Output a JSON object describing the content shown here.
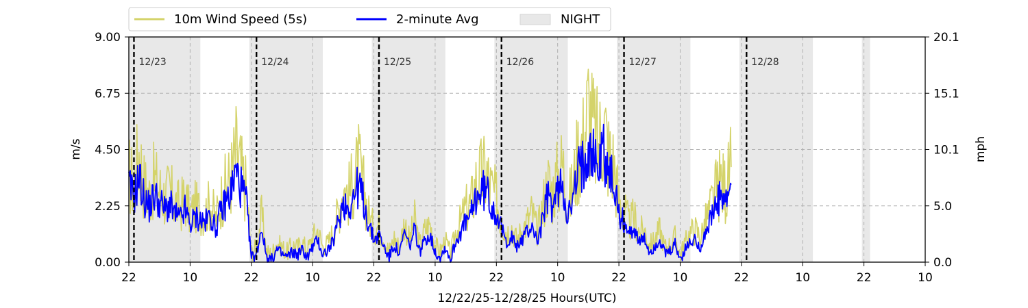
{
  "chart_data": {
    "type": "line",
    "xlabel": "12/22/25-12/28/25  Hours(UTC)",
    "ylabel": "m/s",
    "ylabel_right": "mph",
    "ylim": [
      0,
      9
    ],
    "ylim_right": [
      0,
      20.1
    ],
    "x_range_hours": [
      0,
      156
    ],
    "x_ticks": [
      {
        "hour": 0,
        "label": "22"
      },
      {
        "hour": 12,
        "label": "10"
      },
      {
        "hour": 24,
        "label": "22"
      },
      {
        "hour": 36,
        "label": "10"
      },
      {
        "hour": 48,
        "label": "22"
      },
      {
        "hour": 60,
        "label": "10"
      },
      {
        "hour": 72,
        "label": "22"
      },
      {
        "hour": 84,
        "label": "10"
      },
      {
        "hour": 96,
        "label": "22"
      },
      {
        "hour": 108,
        "label": "10"
      },
      {
        "hour": 120,
        "label": "22"
      },
      {
        "hour": 132,
        "label": "10"
      },
      {
        "hour": 144,
        "label": "22"
      },
      {
        "hour": 156,
        "label": "10"
      }
    ],
    "y_ticks": [
      "0.00",
      "2.25",
      "4.50",
      "6.75",
      "9.00"
    ],
    "y_tick_values": [
      0,
      2.25,
      4.5,
      6.75,
      9
    ],
    "y_ticks_right": [
      "0.0",
      "5.0",
      "10.1",
      "15.1",
      "20.1"
    ],
    "grid": true,
    "legend_placement": "top-left",
    "legend": {
      "raw_label": "10m Wind Speed (5s)",
      "avg_label": "2-minute Avg",
      "night_label": "NIGHT"
    },
    "day_markers": [
      {
        "hour": 1,
        "label": "12/23"
      },
      {
        "hour": 25,
        "label": "12/24"
      },
      {
        "hour": 49,
        "label": "12/25"
      },
      {
        "hour": 73,
        "label": "12/26"
      },
      {
        "hour": 97,
        "label": "12/27"
      },
      {
        "hour": 121,
        "label": "12/28"
      }
    ],
    "night_periods": [
      [
        0,
        14
      ],
      [
        23.6,
        38
      ],
      [
        47.6,
        62
      ],
      [
        71.6,
        86
      ],
      [
        95.6,
        110
      ],
      [
        119.6,
        134
      ],
      [
        143.6,
        145.2
      ]
    ],
    "colors": {
      "raw": "#d4d36a",
      "avg": "#0000ff",
      "night": "#e8e8e8"
    },
    "series": [
      {
        "name": "2-minute Avg",
        "x": [
          0,
          1,
          2,
          3,
          4,
          5,
          6,
          7,
          8,
          9,
          10,
          11,
          12,
          13,
          14,
          15,
          16,
          17,
          18,
          19,
          20,
          21,
          22,
          23,
          24,
          25,
          26,
          27,
          28,
          29,
          30,
          31,
          32,
          33,
          34,
          35,
          36,
          37,
          38,
          39,
          40,
          41,
          42,
          43,
          44,
          45,
          46,
          47,
          48,
          49,
          50,
          51,
          52,
          53,
          54,
          55,
          56,
          57,
          58,
          59,
          60,
          61,
          62,
          63,
          64,
          65,
          66,
          67,
          68,
          69,
          70,
          71,
          72,
          73,
          74,
          75,
          76,
          77,
          78,
          79,
          80,
          81,
          82,
          83,
          84,
          85,
          86,
          87,
          88,
          89,
          90,
          91,
          92,
          93,
          94,
          95,
          96,
          97,
          98,
          99,
          100,
          101,
          102,
          103,
          104,
          105,
          106,
          107,
          108,
          109,
          110,
          111,
          112,
          113,
          114,
          115,
          116,
          117,
          118
        ],
        "values": [
          3.0,
          2.6,
          3.4,
          2.5,
          2.2,
          2.7,
          2.4,
          2.1,
          2.3,
          1.9,
          1.7,
          2.1,
          1.5,
          1.8,
          1.7,
          1.6,
          1.9,
          1.3,
          2.0,
          2.4,
          2.8,
          3.6,
          3.0,
          2.4,
          0.2,
          0.3,
          1.4,
          0.2,
          0.1,
          0.5,
          0.3,
          0.2,
          0.4,
          0.3,
          0.5,
          0.2,
          0.6,
          0.9,
          0.3,
          0.5,
          0.8,
          1.6,
          2.4,
          2.2,
          2.6,
          3.1,
          2.4,
          1.5,
          0.9,
          1.1,
          0.6,
          0.2,
          0.7,
          0.3,
          1.2,
          0.6,
          1.3,
          0.4,
          0.9,
          1.1,
          0.4,
          0.2,
          0.6,
          0.1,
          0.8,
          1.2,
          1.6,
          1.8,
          2.6,
          2.8,
          2.9,
          2.3,
          2.0,
          1.3,
          0.8,
          1.0,
          0.6,
          0.9,
          1.2,
          1.5,
          0.8,
          1.6,
          2.6,
          2.2,
          2.8,
          3.2,
          1.8,
          2.4,
          3.6,
          3.9,
          5.0,
          4.3,
          3.8,
          4.6,
          3.5,
          3.2,
          1.9,
          1.6,
          1.1,
          1.4,
          0.8,
          0.9,
          0.4,
          0.6,
          0.9,
          0.3,
          0.4,
          0.7,
          0.1,
          0.5,
          0.8,
          0.9,
          0.6,
          1.2,
          1.7,
          2.2,
          2.6,
          2.3,
          3.1
        ]
      },
      {
        "name": "10m Wind Speed (5s)",
        "x": [
          0,
          1,
          2,
          3,
          4,
          5,
          6,
          7,
          8,
          9,
          10,
          11,
          12,
          13,
          14,
          15,
          16,
          17,
          18,
          19,
          20,
          21,
          22,
          23,
          24,
          25,
          26,
          27,
          28,
          29,
          30,
          31,
          32,
          33,
          34,
          35,
          36,
          37,
          38,
          39,
          40,
          41,
          42,
          43,
          44,
          45,
          46,
          47,
          48,
          49,
          50,
          51,
          52,
          53,
          54,
          55,
          56,
          57,
          58,
          59,
          60,
          61,
          62,
          63,
          64,
          65,
          66,
          67,
          68,
          69,
          70,
          71,
          72,
          73,
          74,
          75,
          76,
          77,
          78,
          79,
          80,
          81,
          82,
          83,
          84,
          85,
          86,
          87,
          88,
          89,
          90,
          91,
          92,
          93,
          94,
          95,
          96,
          97,
          98,
          99,
          100,
          101,
          102,
          103,
          104,
          105,
          106,
          107,
          108,
          109,
          110,
          111,
          112,
          113,
          114,
          115,
          116,
          117,
          118
        ],
        "values": [
          3.5,
          3.1,
          4.4,
          3.1,
          2.7,
          3.3,
          2.9,
          2.6,
          2.8,
          2.4,
          2.2,
          2.6,
          1.9,
          2.2,
          2.1,
          2.0,
          2.4,
          1.7,
          2.5,
          3.0,
          3.4,
          4.4,
          3.6,
          2.9,
          0.4,
          0.6,
          1.9,
          0.4,
          0.3,
          0.8,
          0.6,
          0.4,
          0.7,
          0.6,
          0.8,
          0.5,
          1.0,
          1.3,
          0.6,
          0.8,
          1.2,
          2.0,
          3.0,
          2.7,
          3.2,
          3.8,
          2.9,
          1.9,
          1.3,
          1.5,
          0.9,
          0.4,
          1.0,
          0.6,
          1.6,
          0.9,
          1.7,
          0.7,
          1.3,
          1.5,
          0.7,
          0.4,
          0.9,
          0.3,
          1.2,
          1.6,
          2.1,
          2.3,
          3.2,
          3.4,
          3.6,
          2.9,
          2.5,
          1.7,
          1.2,
          1.4,
          0.9,
          1.3,
          1.6,
          2.0,
          1.2,
          2.1,
          3.2,
          2.8,
          3.4,
          3.9,
          2.3,
          3.0,
          4.4,
          4.8,
          6.2,
          5.2,
          4.6,
          5.6,
          4.3,
          3.9,
          2.4,
          2.1,
          1.5,
          1.8,
          1.2,
          1.3,
          0.7,
          0.9,
          1.3,
          0.6,
          0.7,
          1.0,
          0.3,
          0.8,
          1.2,
          1.3,
          1.0,
          1.6,
          2.2,
          2.8,
          3.2,
          2.9,
          3.8
        ]
      }
    ]
  }
}
